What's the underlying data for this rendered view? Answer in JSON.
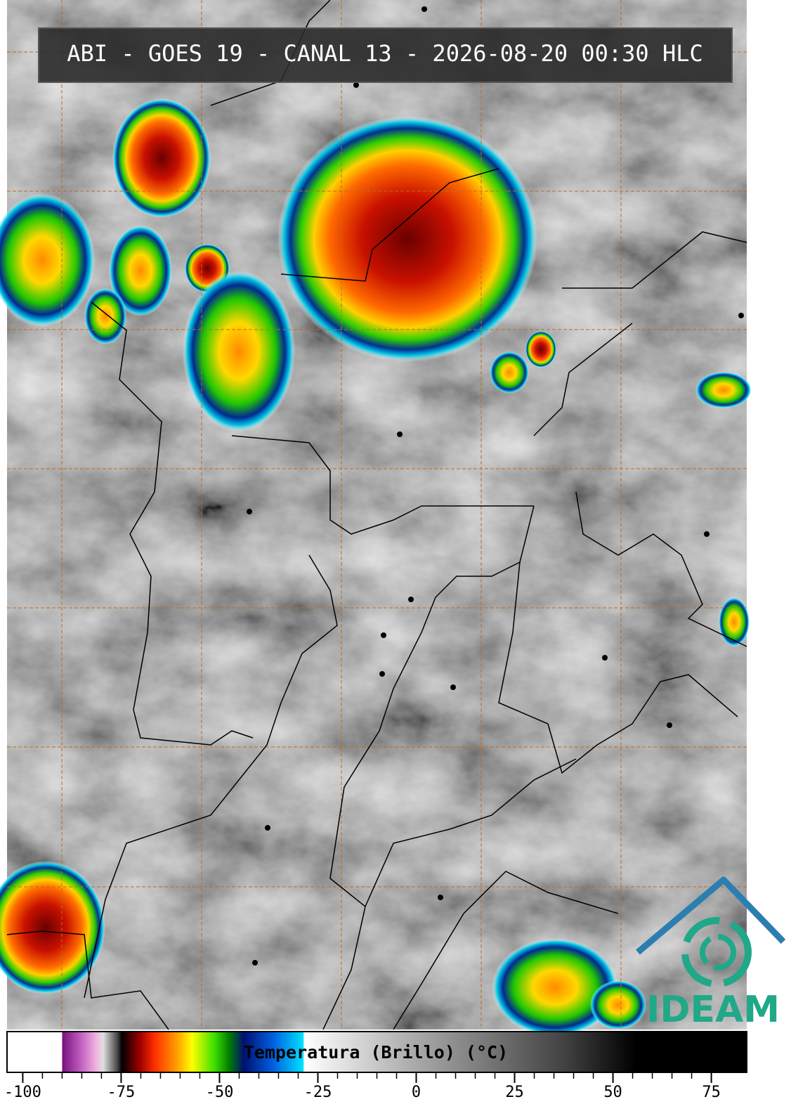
{
  "header": {
    "title": "ABI - GOES 19 - CANAL 13 - 2026-08-20 00:30 HLC"
  },
  "colorbar": {
    "label": "Temperatura (Brillo) (°C)",
    "xlim": [
      -104,
      84
    ],
    "xticks": [
      -100,
      -75,
      -50,
      -25,
      0,
      25,
      50,
      75
    ]
  },
  "logo": {
    "text": "IDEAM"
  }
}
